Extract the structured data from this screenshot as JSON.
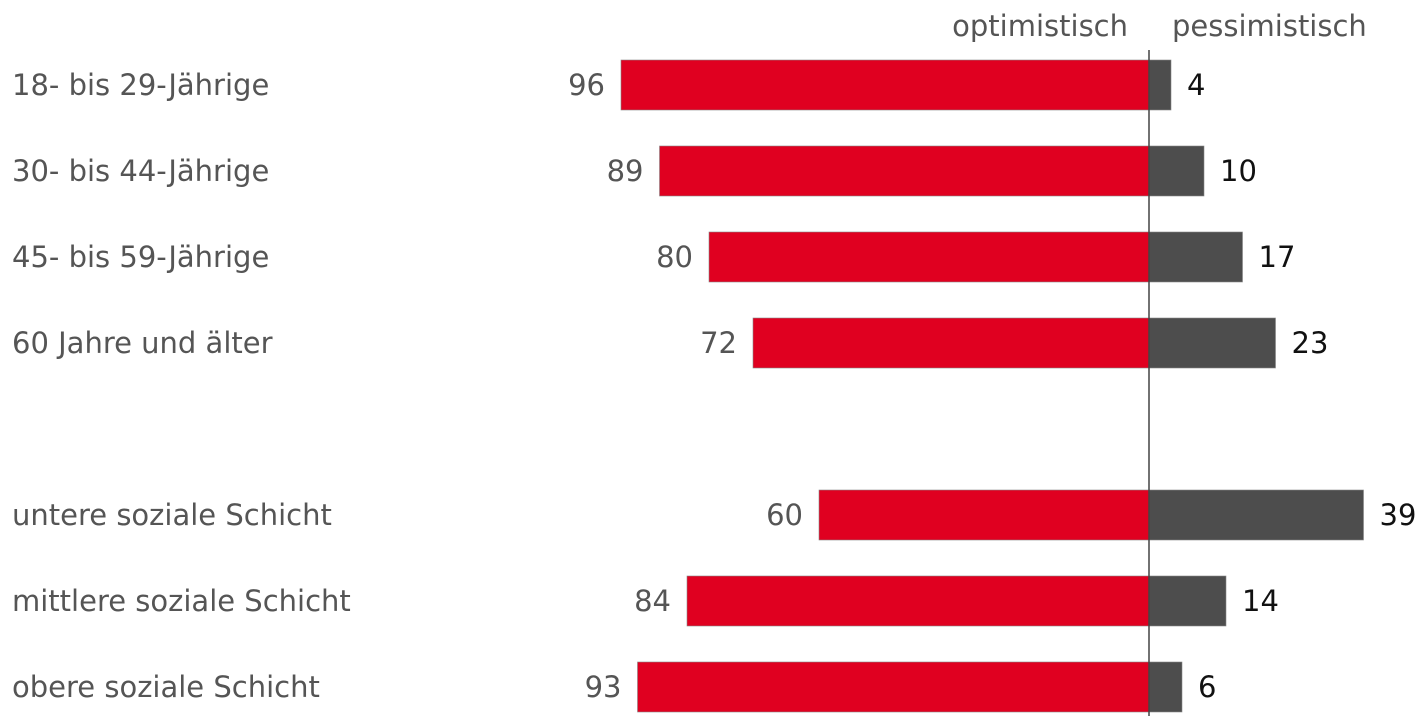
{
  "chart_data": {
    "type": "bar",
    "orientation": "horizontal-diverging",
    "headers": {
      "optimistic": "optimistisch",
      "pessimistic": "pessimistisch"
    },
    "categories": [
      "18- bis 29-Jährige",
      "30- bis 44-Jährige",
      "45- bis 59-Jährige",
      "60 Jahre und älter",
      "untere soziale Schicht",
      "mittlere soziale Schicht",
      "obere soziale Schicht"
    ],
    "groups": [
      [
        0,
        1,
        2,
        3
      ],
      [
        4,
        5,
        6
      ]
    ],
    "series": [
      {
        "name": "optimistisch",
        "values": [
          96,
          89,
          80,
          72,
          60,
          84,
          93
        ],
        "color": "#e00020"
      },
      {
        "name": "pessimistisch",
        "values": [
          4,
          10,
          17,
          23,
          39,
          14,
          6
        ],
        "color": "#4d4d4d"
      }
    ],
    "xlim": [
      0,
      100
    ],
    "axis_color": "#444444"
  }
}
